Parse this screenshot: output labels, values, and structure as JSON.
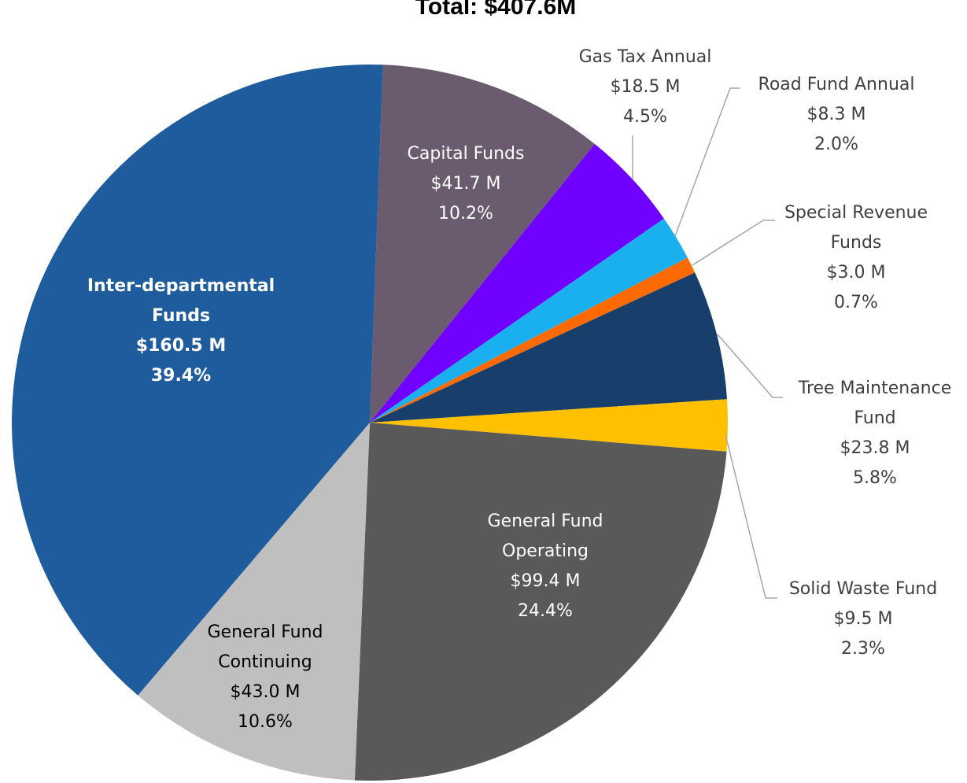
{
  "chart_data": {
    "type": "pie",
    "title": "Total: $407.6M",
    "categories": [
      "Capital Funds",
      "Gas Tax Annual",
      "Road Fund Annual",
      "Special Revenue Funds",
      "Tree Maintenance Fund",
      "Solid Waste Fund",
      "General Fund Operating",
      "General Fund Continuing",
      "Inter-departmental Funds"
    ],
    "values": [
      41.7,
      18.5,
      8.3,
      3.0,
      23.8,
      9.5,
      99.4,
      43.0,
      160.5
    ],
    "value_labels": [
      "$41.7 M",
      "$18.5 M",
      "$8.3 M",
      "$3.0 M",
      "$23.8 M",
      "$9.5 M",
      "$99.4 M",
      "$43.0 M",
      "$160.5 M"
    ],
    "percent_labels": [
      "10.2%",
      "4.5%",
      "2.0%",
      "0.7%",
      "5.8%",
      "2.3%",
      "24.4%",
      "10.6%",
      "39.4%"
    ],
    "colors": [
      "#6b5b6e",
      "#7000ff",
      "#1ab0f0",
      "#ff6a00",
      "#183f6b",
      "#ffc000",
      "#595959",
      "#bfbfbf",
      "#1f5c9e"
    ]
  }
}
